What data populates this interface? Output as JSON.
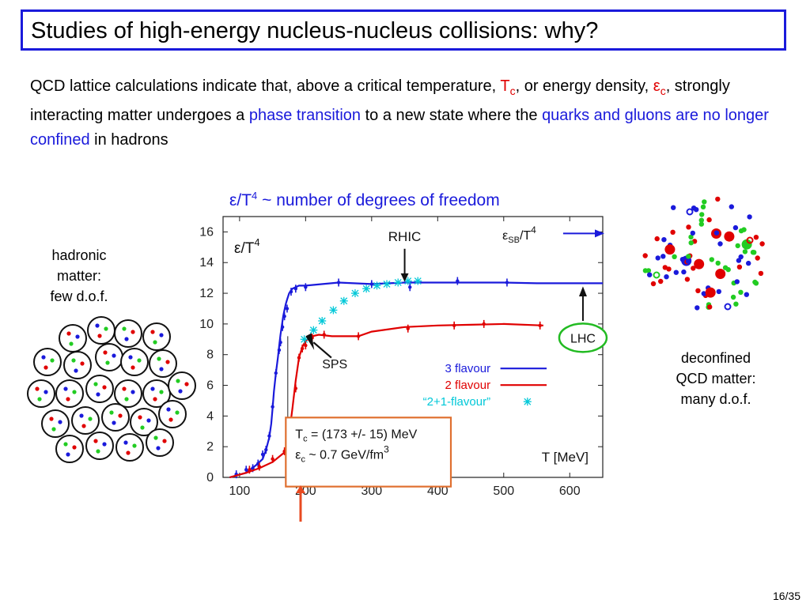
{
  "slide": {
    "title": "Studies of high-energy nucleus-nucleus collisions: why?",
    "page": "16/35"
  },
  "intro": {
    "p1": "QCD lattice calculations indicate that, above a critical temperature, ",
    "tc_T": "T",
    "tc_sub": "c",
    "p2": ", or energy density, ",
    "ec_eps": "ε",
    "ec_sub": "c",
    "p3": ", strongly interacting matter undergoes a ",
    "phase": "phase transition",
    "p4": " to a new state where the ",
    "quarks": "quarks and gluons are no longer confined",
    "p5": " in hadrons"
  },
  "caption": {
    "lhs": "ε/T",
    "sup": "4",
    "rhs": " ~ number of degrees of freedom"
  },
  "left_label": {
    "l1": "hadronic",
    "l2": "matter:",
    "l3": "few d.o.f."
  },
  "right_label": {
    "l1": "deconfined",
    "l2": "QCD matter:",
    "l3": "many d.o.f."
  },
  "colors": {
    "blue": "#1a1adb",
    "red": "#e00000",
    "cyan": "#00c8d8",
    "green": "#22cc22",
    "orange": "#e07030"
  },
  "chart_data": {
    "type": "line",
    "ylabel_main": "ε/T",
    "ylabel_sup": "4",
    "xlabel": "T [MeV]",
    "xlim": [
      75,
      650
    ],
    "ylim": [
      0,
      17
    ],
    "xticks": [
      100,
      200,
      300,
      400,
      500,
      600
    ],
    "yticks": [
      0,
      2,
      4,
      6,
      8,
      10,
      12,
      14,
      16
    ],
    "series": [
      {
        "name": "3 flavour",
        "color": "#1a1adb",
        "kind": "line",
        "x": [
          85,
          110,
          125,
          135,
          140,
          145,
          148,
          150,
          152,
          155,
          158,
          160,
          162,
          164,
          166,
          168,
          170,
          172,
          175,
          180,
          190,
          200,
          250,
          300,
          350,
          400,
          450,
          500,
          550,
          600,
          650
        ],
        "y": [
          0.0,
          0.3,
          0.8,
          1.2,
          1.8,
          2.6,
          3.5,
          4.5,
          5.6,
          6.8,
          7.8,
          8.6,
          9.3,
          9.9,
          10.5,
          10.9,
          11.3,
          11.6,
          12.0,
          12.3,
          12.5,
          12.5,
          12.7,
          12.6,
          12.7,
          12.7,
          12.7,
          12.7,
          12.65,
          12.65,
          12.65
        ],
        "points": [
          [
            95,
            0.2
          ],
          [
            110,
            0.5
          ],
          [
            120,
            0.6
          ],
          [
            128,
            0.9
          ],
          [
            135,
            1.5
          ],
          [
            140,
            1.8
          ],
          [
            145,
            2.7
          ],
          [
            150,
            4.6
          ],
          [
            155,
            6.8
          ],
          [
            160,
            8.3
          ],
          [
            162,
            8.8
          ],
          [
            165,
            9.8
          ],
          [
            168,
            10.5
          ],
          [
            172,
            11.0
          ],
          [
            178,
            12.1
          ],
          [
            185,
            12.3
          ],
          [
            200,
            12.4
          ],
          [
            250,
            12.7
          ],
          [
            300,
            12.6
          ],
          [
            358,
            12.4
          ],
          [
            430,
            12.8
          ],
          [
            505,
            12.7
          ]
        ]
      },
      {
        "name": "2 flavour",
        "color": "#e00000",
        "kind": "line",
        "x": [
          85,
          110,
          130,
          150,
          170,
          175,
          180,
          185,
          190,
          195,
          200,
          210,
          220,
          240,
          280,
          300,
          350,
          400,
          450,
          500,
          560
        ],
        "y": [
          0.0,
          0.3,
          0.6,
          1.0,
          1.7,
          2.8,
          4.5,
          6.3,
          7.8,
          8.5,
          8.9,
          9.2,
          9.3,
          9.2,
          9.2,
          9.5,
          9.8,
          9.9,
          9.95,
          10.0,
          9.9
        ],
        "points": [
          [
            115,
            0.5
          ],
          [
            130,
            0.7
          ],
          [
            150,
            1.2
          ],
          [
            168,
            1.7
          ],
          [
            180,
            3.2
          ],
          [
            185,
            5.8
          ],
          [
            190,
            7.8
          ],
          [
            195,
            8.4
          ],
          [
            200,
            8.6
          ],
          [
            210,
            9.1
          ],
          [
            228,
            9.3
          ],
          [
            280,
            9.2
          ],
          [
            355,
            9.7
          ],
          [
            425,
            9.9
          ],
          [
            470,
            10.0
          ],
          [
            555,
            9.9
          ]
        ]
      },
      {
        "name": "“2+1-flavour”",
        "color": "#00c8d8",
        "kind": "marker",
        "points": [
          [
            198,
            9.0
          ],
          [
            212,
            9.6
          ],
          [
            225,
            10.2
          ],
          [
            242,
            10.9
          ],
          [
            258,
            11.5
          ],
          [
            275,
            12.0
          ],
          [
            292,
            12.3
          ],
          [
            308,
            12.5
          ],
          [
            323,
            12.6
          ],
          [
            340,
            12.7
          ],
          [
            355,
            12.8
          ],
          [
            370,
            12.8
          ]
        ]
      }
    ],
    "annotations": {
      "rhic": "RHIC",
      "sb_eps": "ε",
      "sb_sub": "SB",
      "sb_rest": "/T",
      "sb_sup": "4",
      "lhc": "LHC",
      "sps": "SPS",
      "tc_line1_T": "T",
      "tc_line1_sub": "c",
      "tc_line1_rest": " = (173 +/- 15) MeV",
      "tc_line2_eps": "ε",
      "tc_line2_sub": "c",
      "tc_line2_rest": " ~ 0.7 GeV/fm",
      "tc_line2_sup": "3"
    }
  }
}
